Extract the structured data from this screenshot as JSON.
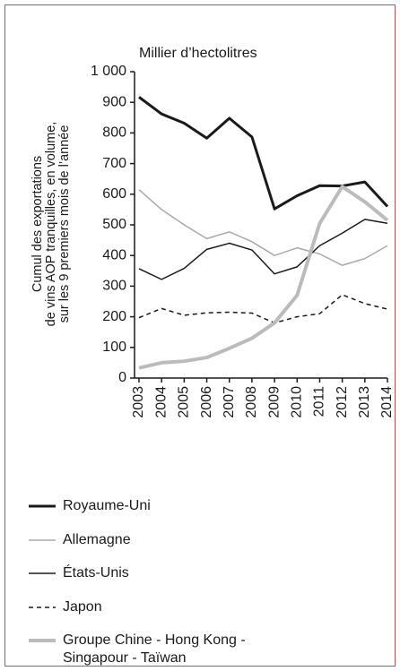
{
  "chart_data": {
    "type": "line",
    "title": "Millier d’hectolitres",
    "y_label_lines": [
      "Cumul des exportations",
      "de vins AOP tranquilles, en volume,",
      "sur les 9 premiers mois de l’année"
    ],
    "x": [
      "2003",
      "2004",
      "2005",
      "2006",
      "2007",
      "2008",
      "2009",
      "2010",
      "2011",
      "2012",
      "2013",
      "2014"
    ],
    "ylim": [
      0,
      1000
    ],
    "yticks": [
      0,
      100,
      200,
      300,
      400,
      500,
      600,
      700,
      800,
      900,
      {
        "value": 1000,
        "label": "1 000"
      }
    ],
    "series": [
      {
        "name": "Royaume-Uni",
        "color": "#1a1a1a",
        "width": 3,
        "values": [
          917,
          862,
          832,
          783,
          848,
          787,
          552,
          595,
          628,
          627,
          640,
          560
        ]
      },
      {
        "name": "Allemagne",
        "color": "#aaaaaa",
        "width": 1.5,
        "values": [
          615,
          550,
          500,
          455,
          477,
          445,
          400,
          425,
          405,
          368,
          390,
          432
        ]
      },
      {
        "name": "États-Unis",
        "color": "#1a1a1a",
        "width": 1.5,
        "values": [
          357,
          322,
          358,
          420,
          440,
          418,
          340,
          363,
          432,
          473,
          518,
          505
        ]
      },
      {
        "name": "Japon",
        "color": "#1a1a1a",
        "width": 1.5,
        "dash": true,
        "values": [
          197,
          227,
          205,
          213,
          215,
          212,
          180,
          200,
          210,
          272,
          243,
          225
        ]
      },
      {
        "name": "Groupe Chine - Hong Kong - Singapour - Taïwan",
        "color": "#bbbbbb",
        "width": 4,
        "values": [
          33,
          50,
          55,
          67,
          97,
          130,
          180,
          270,
          505,
          625,
          575,
          515
        ]
      }
    ]
  }
}
